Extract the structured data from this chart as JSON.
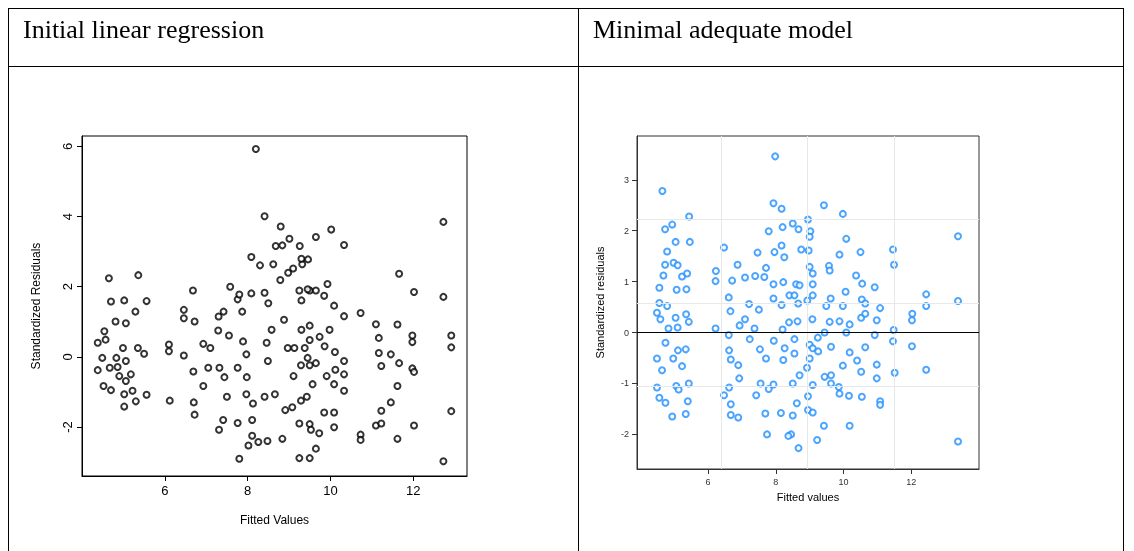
{
  "chart_data": [
    {
      "type": "scatter",
      "title": "Initial linear regression",
      "xlabel": "Fitted Values",
      "ylabel": "Standardized Residuals",
      "xlim": [
        4.0,
        13.3
      ],
      "ylim": [
        -3.4,
        6.3
      ],
      "xticks": [
        6,
        8,
        10,
        12
      ],
      "yticks": [
        -2,
        0,
        2,
        4,
        6
      ],
      "grid": false,
      "marker": "circle",
      "series": [
        {
          "color": "#000000",
          "x": [
            4.38,
            4.65,
            4.7,
            5.02,
            5.36,
            5.56,
            4.54,
            4.81,
            5.29,
            5.06,
            4.38,
            4.52,
            4.7,
            5.02,
            5.02,
            5.3,
            5.56,
            5.22,
            4.67,
            4.83,
            4.99,
            5.06,
            5.18,
            4.49,
            4.9,
            5.35,
            5.5,
            4.57,
            4.86,
            5.06,
            6.1,
            6.1,
            6.12,
            6.46,
            6.46,
            6.68,
            6.46,
            6.72,
            6.69,
            6.7,
            6.72,
            6.93,
            6.93,
            7.05,
            7.1,
            7.3,
            7.29,
            7.42,
            7.32,
            7.44,
            7.41,
            7.31,
            7.5,
            7.58,
            7.55,
            7.76,
            7.8,
            7.76,
            7.76,
            7.8,
            7.87,
            7.89,
            7.97,
            7.98,
            7.97,
            8.02,
            8.09,
            8.09,
            8.11,
            8.13,
            8.11,
            8.2,
            8.3,
            8.26,
            8.41,
            8.41,
            8.41,
            8.46,
            8.48,
            8.5,
            8.49,
            8.62,
            8.58,
            8.66,
            8.68,
            8.79,
            8.8,
            8.84,
            8.84,
            8.88,
            8.91,
            8.98,
            9.01,
            8.97,
            9.1,
            9.11,
            9.08,
            9.26,
            9.3,
            9.32,
            9.38,
            9.5,
            9.5,
            9.5,
            9.5,
            9.65,
            10.02,
            10.33,
            9.3,
            9.46,
            9.25,
            9.45,
            9.65,
            9.85,
            9.93,
            9.3,
            10.09,
            10.33,
            10.73,
            9.5,
            9.5,
            9.74,
            9.98,
            9.86,
            9.13,
            9.45,
            9.65,
            10.11,
            10.33,
            9.29,
            9.91,
            10.12,
            10.33,
            9.57,
            10.09,
            10.33,
            9.29,
            9.43,
            9.85,
            10.09,
            9.25,
            9.53,
            9.73,
            10.09,
            9.65,
            9.25,
            10.73,
            10.73,
            11.1,
            11.17,
            11.17,
            11.23,
            11.46,
            11.66,
            11.62,
            11.66,
            11.62,
            11.46,
            11.23,
            11.1,
            11.23,
            11.62,
            11.98,
            11.98,
            12.02,
            11.98,
            12.02,
            12.02,
            12.73,
            12.73,
            12.73,
            12.92,
            12.92,
            12.92
          ],
          "values": [
            0.4,
            2.24,
            1.58,
            1.61,
            2.33,
            1.59,
            0.73,
            1.01,
            1.29,
            0.96,
            -0.38,
            -0.83,
            -0.95,
            -1.42,
            -1.07,
            -1.27,
            -1.08,
            -0.97,
            -0.31,
            -0.03,
            0.25,
            -0.12,
            -0.5,
            -0.03,
            -0.55,
            0.25,
            0.09,
            0.49,
            -0.29,
            -0.69,
            0.35,
            0.16,
            -1.25,
            1.34,
            1.1,
            1.89,
            0.04,
            1.01,
            -0.42,
            -1.3,
            -1.65,
            0.37,
            -0.83,
            -0.31,
            0.25,
            1.15,
            0.75,
            1.29,
            -0.31,
            -0.58,
            -1.8,
            -2.08,
            -1.14,
            2.0,
            0.61,
            1.64,
            1.78,
            -0.31,
            -1.89,
            -2.91,
            1.29,
            0.44,
            0.07,
            -0.58,
            -1.07,
            -2.53,
            2.85,
            1.81,
            -1.8,
            -1.33,
            -2.25,
            5.93,
            2.61,
            -2.43,
            4.01,
            1.83,
            -1.14,
            0.4,
            -2.4,
            1.53,
            -0.12,
            2.64,
            0.77,
            -1.07,
            3.16,
            2.19,
            3.72,
            3.18,
            -2.34,
            1.06,
            -1.52,
            2.4,
            3.37,
            0.25,
            2.52,
            -0.55,
            -1.44,
            3.16,
            0.77,
            2.64,
            0.25,
            1.89,
            -1.92,
            -2.89,
            -0.24,
            3.42,
            3.63,
            3.19,
            2.8,
            2.78,
            1.89,
            1.93,
            1.89,
            1.74,
            2.08,
            1.61,
            1.46,
            1.16,
            1.25,
            0.89,
            0.48,
            0.57,
            0.77,
            0.3,
            0.25,
            -0.03,
            -0.18,
            0.14,
            -0.12,
            -0.24,
            -0.55,
            -0.37,
            -0.5,
            -0.78,
            -0.78,
            -0.97,
            -1.25,
            -1.14,
            -1.59,
            -1.59,
            -1.9,
            -2.08,
            -2.18,
            -2.01,
            -2.62,
            -2.89,
            -2.22,
            -2.37,
            0.93,
            0.54,
            0.11,
            -0.26,
            0.07,
            -0.18,
            0.92,
            2.37,
            -0.83,
            -1.3,
            -1.54,
            -1.96,
            -1.9,
            -2.34,
            0.61,
            0.42,
            1.85,
            -0.33,
            -0.43,
            -1.96,
            3.85,
            1.71,
            -2.98,
            0.61,
            0.27,
            -1.55
          ]
        }
      ]
    },
    {
      "type": "scatter",
      "title": "Minimal adequate model",
      "xlabel": "Fitted values",
      "ylabel": "Standardized residuals",
      "xlim": [
        3.9,
        14.0
      ],
      "ylim": [
        -2.68,
        3.86
      ],
      "xticks": [
        6,
        8,
        10,
        12
      ],
      "yticks": [
        -2,
        -1,
        0,
        1,
        2,
        3
      ],
      "grid": false,
      "marker": "circle",
      "ref_lines": [
        {
          "axis": "x",
          "value": 6.4,
          "color": "#e8e8e8"
        },
        {
          "axis": "x",
          "value": 8.94,
          "color": "#e8e8e8"
        },
        {
          "axis": "x",
          "value": 11.49,
          "color": "#e8e8e8"
        },
        {
          "axis": "y",
          "value": -1.05,
          "color": "#e8e8e8"
        },
        {
          "axis": "y",
          "value": 0.58,
          "color": "#e8e8e8"
        },
        {
          "axis": "y",
          "value": 2.22,
          "color": "#e8e8e8"
        },
        {
          "axis": "y",
          "value": 0,
          "color": "#000000"
        }
      ],
      "series": [
        {
          "color": "#1e8fff",
          "x": [
            4.65,
            4.73,
            4.94,
            5.44,
            5.46,
            5.04,
            4.79,
            4.73,
            4.98,
            5.1,
            4.68,
            5.23,
            5.38,
            4.56,
            5.07,
            5.36,
            4.56,
            4.79,
            4.49,
            4.59,
            5.04,
            5.35,
            5.43,
            4.83,
            5.1,
            4.49,
            4.64,
            4.74,
            4.97,
            5.11,
            5.34,
            5.43,
            4.49,
            4.56,
            4.74,
            4.94,
            5.06,
            5.13,
            5.34,
            5.4,
            5.23,
            6.22,
            6.23,
            6.22,
            6.47,
            6.47,
            6.61,
            6.66,
            6.71,
            6.61,
            6.62,
            6.67,
            6.62,
            6.67,
            6.67,
            6.87,
            6.89,
            6.92,
            6.89,
            6.93,
            7.09,
            7.09,
            7.21,
            7.23,
            7.37,
            7.39,
            7.46,
            7.42,
            7.5,
            7.53,
            7.55,
            7.66,
            7.71,
            7.69,
            7.71,
            7.74,
            7.79,
            7.79,
            7.93,
            7.98,
            7.96,
            7.93,
            7.93,
            7.94,
            7.93,
            8.17,
            8.2,
            8.17,
            8.25,
            8.22,
            8.15,
            8.22,
            8.2,
            8.17,
            8.45,
            8.5,
            8.67,
            8.95,
            9.02,
            9.0,
            8.97,
            8.75,
            9.42,
            9.98,
            10.08,
            9.88,
            9.57,
            9.59,
            9.0,
            9.09,
            9.09,
            8.6,
            8.7,
            8.4,
            8.55,
            8.93,
            8.66,
            9.09,
            9.62,
            9.49,
            10.06,
            9.98,
            10.37,
            10.55,
            10.5,
            10.92,
            11.46,
            11.49,
            10.54,
            10.64,
            10.52,
            10.64,
            11.08,
            10.98,
            9.88,
            10.18,
            10.08,
            9.59,
            9.08,
            8.39,
            8.64,
            9.44,
            9.24,
            9.63,
            9.0,
            8.55,
            8.26,
            9.09,
            8.55,
            9.25,
            9.98,
            10.18,
            10.4,
            10.52,
            10.64,
            10.92,
            10.98,
            10.98,
            11.46,
            11.48,
            11.51,
            12.02,
            12.03,
            12.02,
            12.44,
            12.44,
            12.44,
            13.38,
            13.38,
            13.38,
            9.44,
            9.63,
            9.63,
            8.92,
            9.0,
            9.09,
            8.7,
            8.5,
            8.62,
            8.5,
            8.95,
            8.95,
            9.09,
            9.42,
            8.37,
            8.67,
            9.22,
            10.18,
            9.86,
            9.88,
            10.16,
            10.54,
            11.08,
            11.08
          ],
          "values": [
            2.78,
            2.03,
            2.12,
            2.28,
            1.78,
            1.78,
            1.59,
            1.33,
            1.37,
            1.32,
            1.12,
            1.1,
            1.16,
            0.88,
            0.84,
            0.85,
            0.58,
            0.52,
            0.39,
            0.26,
            0.29,
            0.36,
            0.21,
            0.08,
            0.1,
            -0.51,
            -0.74,
            -0.2,
            -0.51,
            -0.35,
            -0.33,
            -1.0,
            -1.08,
            -1.28,
            -1.38,
            -1.65,
            -1.05,
            -1.12,
            -1.6,
            -1.35,
            -0.66,
            1.01,
            1.21,
            0.08,
            1.67,
            -1.23,
            0.69,
            0.42,
            1.02,
            -0.05,
            -0.35,
            -0.53,
            -1.08,
            -1.41,
            -1.62,
            1.33,
            -0.64,
            -0.9,
            -1.67,
            0.14,
            0.26,
            1.08,
            0.56,
            -0.13,
            0.08,
            1.11,
            1.57,
            -1.23,
            0.45,
            -0.33,
            -1.0,
            1.09,
            1.27,
            -1.59,
            -0.51,
            -2.0,
            -1.11,
            1.99,
            2.54,
            3.46,
            1.58,
            0.95,
            0.67,
            -0.16,
            -1.02,
            2.43,
            2.07,
            1.71,
            1.48,
            0.99,
            -1.58,
            -0.54,
            0.06,
            0.54,
            -2.0,
            2.14,
            2.03,
            2.22,
            1.99,
            1.88,
            1.61,
            1.63,
            2.5,
            2.33,
            1.84,
            1.53,
            1.31,
            1.22,
            1.29,
            1.16,
            0.95,
            0.95,
            0.93,
            0.73,
            0.73,
            0.63,
            0.57,
            0.73,
            0.67,
            0.52,
            0.8,
            0.52,
            1.12,
            0.96,
            1.58,
            0.89,
            1.63,
            1.33,
            0.65,
            0.57,
            0.29,
            0.37,
            0.48,
            0.24,
            0.22,
            0.16,
            0.0,
            0.21,
            0.26,
            0.2,
            0.22,
            0.0,
            -0.1,
            -0.28,
            -0.24,
            -0.13,
            -0.31,
            -0.31,
            -0.41,
            -0.37,
            -0.65,
            -0.39,
            -0.55,
            -0.77,
            -0.29,
            -0.05,
            -0.63,
            -0.9,
            -0.17,
            0.05,
            -0.79,
            -0.27,
            0.37,
            0.24,
            0.75,
            0.52,
            -0.73,
            1.89,
            0.62,
            -2.14,
            -0.87,
            -0.84,
            -1.0,
            -0.69,
            -0.51,
            -1.03,
            -0.84,
            -1.0,
            -1.39,
            -1.63,
            -1.25,
            -1.52,
            -1.57,
            -1.83,
            -2.03,
            -2.27,
            -2.11,
            -1.83,
            -1.07,
            -1.2,
            -1.24,
            -1.26,
            -1.35,
            -1.42
          ]
        }
      ]
    }
  ]
}
